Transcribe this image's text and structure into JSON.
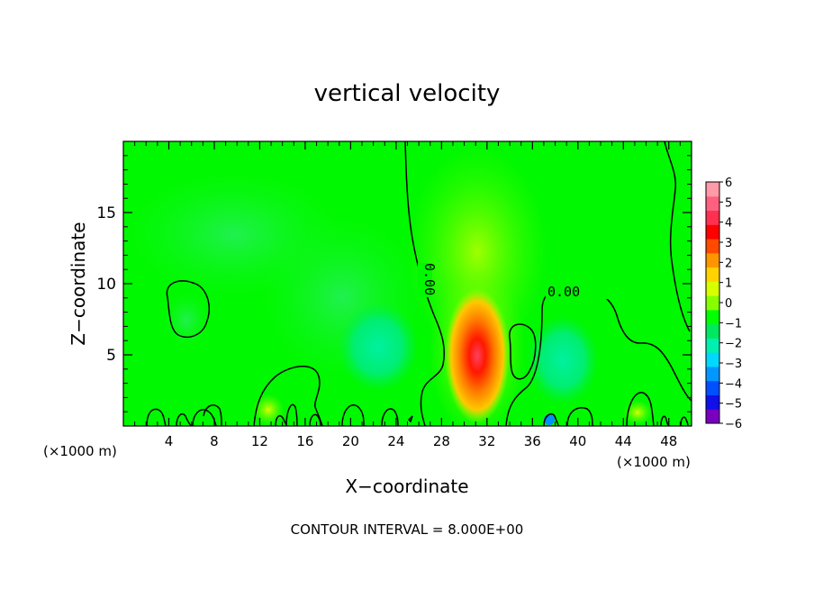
{
  "chart_data": {
    "type": "heatmap",
    "title": "vertical velocity",
    "xlabel": "X−coordinate",
    "ylabel": "Z−coordinate",
    "x_unit_label": "(×1000 m)",
    "y_unit_label": "(×1000 m)",
    "xlim": [
      0,
      50
    ],
    "ylim": [
      0,
      20
    ],
    "x_ticks": [
      4,
      8,
      12,
      16,
      20,
      24,
      28,
      32,
      36,
      40,
      44,
      48
    ],
    "y_ticks": [
      5,
      10,
      15
    ],
    "footer": "CONTOUR INTERVAL = 8.000E+00",
    "contour_labels": [
      "0.00",
      "0.00"
    ],
    "colorbar": {
      "levels": [
        6,
        5,
        4,
        3,
        2,
        1,
        0,
        -1,
        -2,
        -3,
        -4,
        -5,
        -6
      ],
      "range": [
        -6,
        6
      ],
      "colors": [
        "#7a00c0",
        "#1010e8",
        "#0050ff",
        "#0098ff",
        "#00d8ff",
        "#00f0b0",
        "#00e860",
        "#00ff00",
        "#88ff00",
        "#d8ff00",
        "#ffd200",
        "#ff9600",
        "#ff4a00",
        "#ff0000",
        "#ff3050",
        "#ff6080",
        "#ff9aa8"
      ]
    },
    "features": [
      {
        "type": "updraft",
        "x": 31,
        "z": 3.5,
        "value": 5.5
      },
      {
        "type": "weak-updraft",
        "x": 31,
        "z": 14,
        "value": 0.6
      },
      {
        "type": "downdraft",
        "x": 22,
        "z": 5,
        "value": -1.5
      },
      {
        "type": "downdraft",
        "x": 39,
        "z": 5,
        "value": -1.5
      },
      {
        "type": "downdraft",
        "x": 5,
        "z": 8,
        "value": -0.5
      }
    ]
  }
}
